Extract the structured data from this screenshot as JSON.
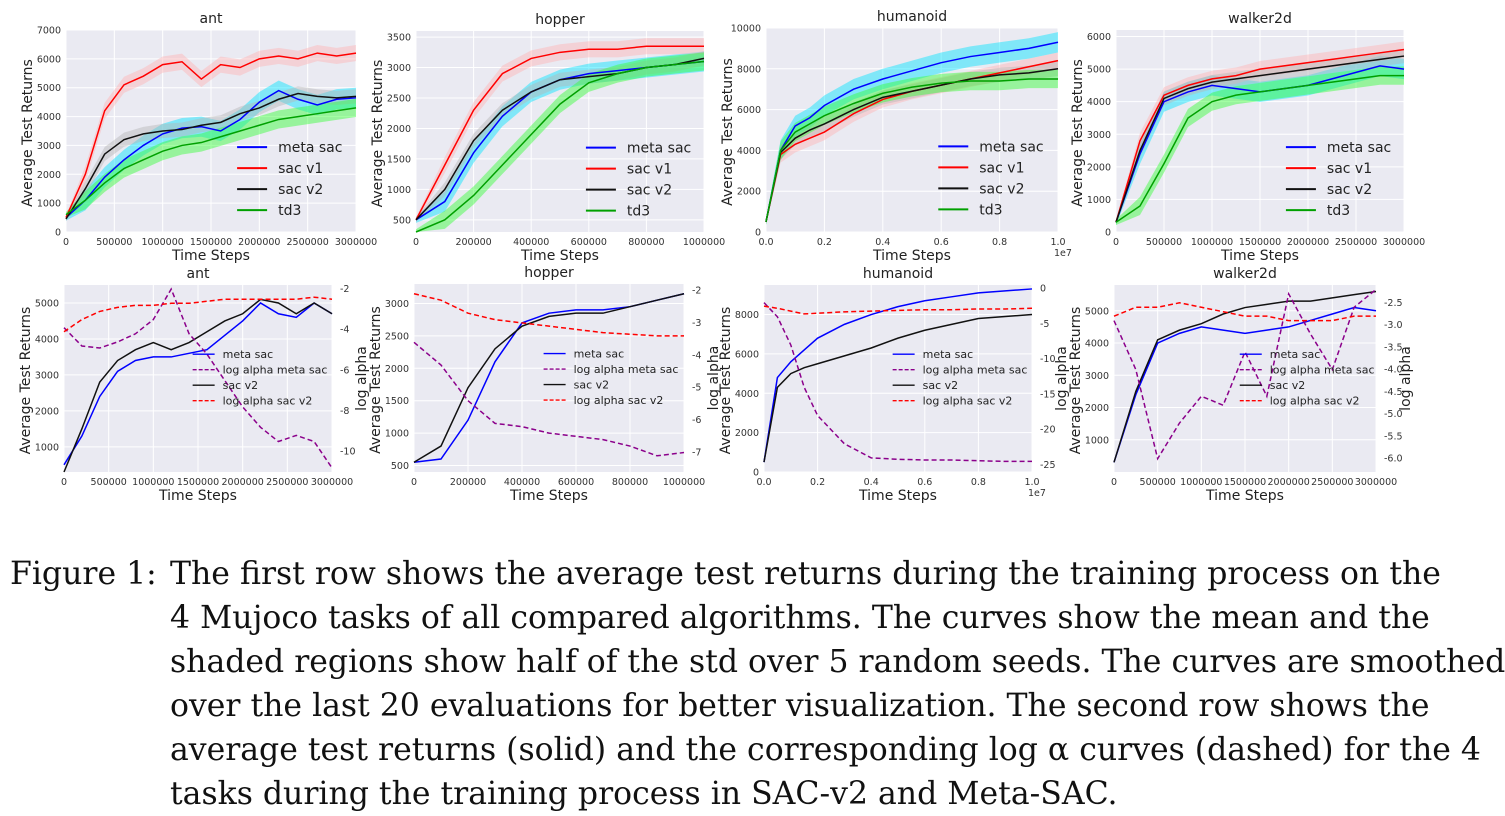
{
  "chart_data": [
    {
      "type": "line",
      "task": "ant",
      "title": "ant",
      "xlabel": "Time Steps",
      "ylabel": "Average Test Returns",
      "xlim": [
        0,
        3000000
      ],
      "ylim": [
        0,
        7000
      ],
      "xticks": [
        "0",
        "500000",
        "1000000",
        "1500000",
        "2000000",
        "2500000",
        "3000000"
      ],
      "yticks": [
        "0",
        "1000",
        "2000",
        "3000",
        "4000",
        "5000",
        "6000",
        "7000"
      ],
      "legend": [
        "meta sac",
        "sac v1",
        "sac v2",
        "td3"
      ],
      "x": [
        0,
        200000,
        400000,
        600000,
        800000,
        1000000,
        1200000,
        1400000,
        1600000,
        1800000,
        2000000,
        2200000,
        2400000,
        2600000,
        2800000,
        3000000
      ],
      "series": [
        {
          "name": "meta sac",
          "values": [
            500,
            1100,
            1900,
            2500,
            3000,
            3400,
            3600,
            3650,
            3500,
            3900,
            4500,
            4900,
            4600,
            4400,
            4600,
            4650
          ]
        },
        {
          "name": "sac v1",
          "values": [
            500,
            2000,
            4200,
            5100,
            5400,
            5800,
            5900,
            5300,
            5800,
            5700,
            6000,
            6100,
            6000,
            6200,
            6100,
            6200
          ]
        },
        {
          "name": "sac v2",
          "values": [
            450,
            1500,
            2700,
            3200,
            3400,
            3500,
            3550,
            3700,
            3800,
            4100,
            4300,
            4600,
            4800,
            4700,
            4650,
            4700
          ]
        },
        {
          "name": "td3",
          "values": [
            600,
            1100,
            1700,
            2200,
            2500,
            2800,
            3000,
            3100,
            3300,
            3500,
            3700,
            3900,
            4000,
            4100,
            4200,
            4300
          ]
        }
      ]
    },
    {
      "type": "line",
      "task": "hopper",
      "title": "hopper",
      "xlabel": "Time Steps",
      "ylabel": "Average Test Returns",
      "xlim": [
        0,
        1000000
      ],
      "ylim": [
        300,
        3600
      ],
      "xticks": [
        "0",
        "200000",
        "400000",
        "600000",
        "800000",
        "1000000"
      ],
      "yticks": [
        "500",
        "1000",
        "1500",
        "2000",
        "2500",
        "3000",
        "3500"
      ],
      "legend": [
        "meta sac",
        "sac v1",
        "sac v2",
        "td3"
      ],
      "x": [
        0,
        100000,
        200000,
        300000,
        400000,
        500000,
        600000,
        700000,
        800000,
        900000,
        1000000
      ],
      "series": [
        {
          "name": "meta sac",
          "values": [
            500,
            800,
            1600,
            2200,
            2600,
            2800,
            2900,
            2950,
            3000,
            3050,
            3100
          ]
        },
        {
          "name": "sac v1",
          "values": [
            500,
            1400,
            2300,
            2900,
            3150,
            3250,
            3300,
            3300,
            3350,
            3350,
            3350
          ]
        },
        {
          "name": "sac v2",
          "values": [
            500,
            1000,
            1800,
            2300,
            2600,
            2800,
            2850,
            2900,
            3000,
            3050,
            3150
          ]
        },
        {
          "name": "td3",
          "values": [
            300,
            500,
            900,
            1400,
            1900,
            2400,
            2750,
            2900,
            3000,
            3050,
            3100
          ]
        }
      ]
    },
    {
      "type": "line",
      "task": "humanoid",
      "title": "humanoid",
      "xlabel": "Time Steps",
      "ylabel": "Average Test Returns",
      "xlim": [
        0,
        1
      ],
      "ylim": [
        0,
        10000
      ],
      "x_scale_label": "1e7",
      "xticks": [
        "0.0",
        "0.2",
        "0.4",
        "0.6",
        "0.8",
        "1.0"
      ],
      "yticks": [
        "0",
        "2000",
        "4000",
        "6000",
        "8000",
        "10000"
      ],
      "legend": [
        "meta sac",
        "sac v1",
        "sac v2",
        "td3"
      ],
      "x": [
        0,
        0.05,
        0.1,
        0.15,
        0.2,
        0.3,
        0.4,
        0.5,
        0.6,
        0.7,
        0.8,
        0.9,
        1.0
      ],
      "series": [
        {
          "name": "meta sac",
          "values": [
            500,
            4000,
            5200,
            5600,
            6200,
            7000,
            7500,
            7900,
            8300,
            8600,
            8800,
            9000,
            9300
          ]
        },
        {
          "name": "sac v1",
          "values": [
            500,
            3800,
            4300,
            4600,
            4900,
            5800,
            6500,
            6900,
            7200,
            7500,
            7800,
            8100,
            8400
          ]
        },
        {
          "name": "sac v2",
          "values": [
            500,
            3900,
            4600,
            5000,
            5300,
            6000,
            6600,
            6900,
            7200,
            7500,
            7700,
            7800,
            8000
          ]
        },
        {
          "name": "td3",
          "values": [
            500,
            4000,
            4900,
            5300,
            5700,
            6300,
            6800,
            7100,
            7300,
            7400,
            7400,
            7500,
            7500
          ]
        }
      ]
    },
    {
      "type": "line",
      "task": "walker2d",
      "title": "walker2d",
      "xlabel": "Time Steps",
      "ylabel": "Average Test Returns",
      "xlim": [
        0,
        3000000
      ],
      "ylim": [
        0,
        6200
      ],
      "xticks": [
        "0",
        "500000",
        "1000000",
        "1500000",
        "2000000",
        "2500000",
        "3000000"
      ],
      "yticks": [
        "0",
        "1000",
        "2000",
        "3000",
        "4000",
        "5000",
        "6000"
      ],
      "legend": [
        "meta sac",
        "sac v1",
        "sac v2",
        "td3"
      ],
      "x": [
        0,
        250000,
        500000,
        750000,
        1000000,
        1250000,
        1500000,
        1750000,
        2000000,
        2250000,
        2500000,
        2750000,
        3000000
      ],
      "series": [
        {
          "name": "meta sac",
          "values": [
            300,
            2400,
            4000,
            4300,
            4500,
            4400,
            4300,
            4400,
            4500,
            4700,
            4900,
            5100,
            5000
          ]
        },
        {
          "name": "sac v1",
          "values": [
            300,
            2800,
            4200,
            4500,
            4700,
            4800,
            5000,
            5100,
            5200,
            5300,
            5400,
            5500,
            5600
          ]
        },
        {
          "name": "sac v2",
          "values": [
            300,
            2500,
            4100,
            4400,
            4600,
            4700,
            4800,
            4900,
            5000,
            5100,
            5200,
            5300,
            5400
          ]
        },
        {
          "name": "td3",
          "values": [
            300,
            800,
            2100,
            3500,
            4000,
            4200,
            4300,
            4400,
            4500,
            4600,
            4700,
            4800,
            4800
          ]
        }
      ]
    },
    {
      "type": "line",
      "task": "ant",
      "title": "ant",
      "xlabel": "Time Steps",
      "ylabel": "Average Test Returns",
      "y2label": "log alpha",
      "xlim": [
        0,
        3000000
      ],
      "ylim": [
        300,
        5500
      ],
      "y2lim": [
        -11,
        -1.8
      ],
      "xticks": [
        "0",
        "500000",
        "1000000",
        "1500000",
        "2000000",
        "2500000",
        "3000000"
      ],
      "yticks": [
        "1000",
        "2000",
        "3000",
        "4000",
        "5000"
      ],
      "y2ticks": [
        "-2",
        "-4",
        "-6",
        "-8",
        "-10"
      ],
      "legend": [
        "meta sac",
        "log alpha meta sac",
        "sac v2",
        "log alpha sac v2"
      ],
      "x": [
        0,
        200000,
        400000,
        600000,
        800000,
        1000000,
        1200000,
        1400000,
        1600000,
        1800000,
        2000000,
        2200000,
        2400000,
        2600000,
        2800000,
        3000000
      ],
      "series": [
        {
          "name": "meta sac",
          "axis": "left",
          "values": [
            500,
            1300,
            2400,
            3100,
            3400,
            3500,
            3500,
            3600,
            3700,
            4100,
            4500,
            5000,
            4700,
            4600,
            5000,
            4700
          ]
        },
        {
          "name": "sac v2",
          "axis": "left",
          "values": [
            300,
            1500,
            2800,
            3400,
            3700,
            3900,
            3700,
            3900,
            4200,
            4500,
            4700,
            5100,
            5000,
            4700,
            5000,
            4700
          ]
        },
        {
          "name": "log alpha meta sac",
          "axis": "right",
          "values": [
            -3.9,
            -4.8,
            -4.9,
            -4.6,
            -4.2,
            -3.5,
            -2,
            -4.2,
            -5.2,
            -6.5,
            -7.8,
            -8.8,
            -9.5,
            -9.2,
            -9.5,
            -10.8
          ]
        },
        {
          "name": "log alpha sac v2",
          "axis": "right",
          "values": [
            -4.1,
            -3.5,
            -3.1,
            -2.9,
            -2.8,
            -2.8,
            -2.7,
            -2.7,
            -2.6,
            -2.5,
            -2.5,
            -2.5,
            -2.5,
            -2.5,
            -2.4,
            -2.5
          ]
        }
      ]
    },
    {
      "type": "line",
      "task": "hopper",
      "title": "hopper",
      "xlabel": "Time Steps",
      "ylabel": "Average Test Returns",
      "y2label": "log alpha",
      "xlim": [
        0,
        1000000
      ],
      "ylim": [
        400,
        3300
      ],
      "y2lim": [
        -7.6,
        -1.8
      ],
      "xticks": [
        "0",
        "200000",
        "400000",
        "600000",
        "800000",
        "1000000"
      ],
      "yticks": [
        "500",
        "1000",
        "1500",
        "2000",
        "2500",
        "3000"
      ],
      "y2ticks": [
        "-2",
        "-3",
        "-4",
        "-5",
        "-6",
        "-7"
      ],
      "legend": [
        "meta sac",
        "log alpha meta sac",
        "sac v2",
        "log alpha sac v2"
      ],
      "x": [
        0,
        100000,
        200000,
        300000,
        400000,
        500000,
        600000,
        700000,
        800000,
        900000,
        1000000
      ],
      "series": [
        {
          "name": "meta sac",
          "axis": "left",
          "values": [
            550,
            600,
            1200,
            2100,
            2700,
            2850,
            2900,
            2900,
            2950,
            3050,
            3150
          ]
        },
        {
          "name": "sac v2",
          "axis": "left",
          "values": [
            550,
            800,
            1700,
            2300,
            2650,
            2800,
            2850,
            2850,
            2950,
            3050,
            3150
          ]
        },
        {
          "name": "log alpha meta sac",
          "axis": "right",
          "values": [
            -3.6,
            -4.3,
            -5.4,
            -6.1,
            -6.2,
            -6.4,
            -6.5,
            -6.6,
            -6.8,
            -7.1,
            -7
          ]
        },
        {
          "name": "log alpha sac v2",
          "axis": "right",
          "values": [
            -2.1,
            -2.3,
            -2.7,
            -2.9,
            -3,
            -3.1,
            -3.2,
            -3.3,
            -3.35,
            -3.4,
            -3.4
          ]
        }
      ]
    },
    {
      "type": "line",
      "task": "humanoid",
      "title": "humanoid",
      "xlabel": "Time Steps",
      "ylabel": "Average Test Returns",
      "y2label": "log alpha",
      "xlim": [
        0,
        1
      ],
      "ylim": [
        0,
        9500
      ],
      "y2lim": [
        -26,
        0.5
      ],
      "x_scale_label": "1e7",
      "xticks": [
        "0.0",
        "0.2",
        "0.4",
        "0.6",
        "0.8",
        "1.0"
      ],
      "yticks": [
        "0",
        "2000",
        "4000",
        "6000",
        "8000"
      ],
      "y2ticks": [
        "0",
        "-5",
        "-10",
        "-15",
        "-20",
        "-25"
      ],
      "legend": [
        "meta sac",
        "log alpha meta sac",
        "sac v2",
        "log alpha sac v2"
      ],
      "x": [
        0,
        0.05,
        0.1,
        0.15,
        0.2,
        0.3,
        0.4,
        0.5,
        0.6,
        0.7,
        0.8,
        0.9,
        1.0
      ],
      "series": [
        {
          "name": "meta sac",
          "axis": "left",
          "values": [
            500,
            4800,
            5600,
            6200,
            6800,
            7500,
            8000,
            8400,
            8700,
            8900,
            9100,
            9200,
            9300
          ]
        },
        {
          "name": "sac v2",
          "axis": "left",
          "values": [
            500,
            4300,
            5000,
            5300,
            5500,
            5900,
            6300,
            6800,
            7200,
            7500,
            7800,
            7900,
            8000
          ]
        },
        {
          "name": "log alpha meta sac",
          "axis": "right",
          "values": [
            -2,
            -4,
            -8,
            -14,
            -18,
            -22,
            -24,
            -24.2,
            -24.3,
            -24.3,
            -24.4,
            -24.5,
            -24.5
          ]
        },
        {
          "name": "log alpha sac v2",
          "axis": "right",
          "values": [
            -2.5,
            -2.8,
            -3.2,
            -3.6,
            -3.5,
            -3.3,
            -3.2,
            -3.1,
            -3,
            -3,
            -2.9,
            -2.9,
            -2.8
          ]
        }
      ]
    },
    {
      "type": "line",
      "task": "walker2d",
      "title": "walker2d",
      "xlabel": "Time Steps",
      "ylabel": "Average Test Returns",
      "y2label": "log alpha",
      "xlim": [
        0,
        3000000
      ],
      "ylim": [
        0,
        5800
      ],
      "y2lim": [
        -6.3,
        -2.1
      ],
      "xticks": [
        "0",
        "500000",
        "1000000",
        "1500000",
        "2000000",
        "2500000",
        "3000000"
      ],
      "yticks": [
        "1000",
        "2000",
        "3000",
        "4000",
        "5000"
      ],
      "y2ticks": [
        "-2.5",
        "-3.0",
        "-3.5",
        "-4.0",
        "-4.5",
        "-5.0",
        "-5.5",
        "-6.0"
      ],
      "legend": [
        "meta sac",
        "log alpha meta sac",
        "sac v2",
        "log alpha sac v2"
      ],
      "x": [
        0,
        250000,
        500000,
        750000,
        1000000,
        1250000,
        1500000,
        1750000,
        2000000,
        2250000,
        2500000,
        2750000,
        3000000
      ],
      "series": [
        {
          "name": "meta sac",
          "axis": "left",
          "values": [
            300,
            2400,
            4000,
            4300,
            4500,
            4400,
            4300,
            4400,
            4500,
            4700,
            4900,
            5100,
            5000
          ]
        },
        {
          "name": "sac v2",
          "axis": "left",
          "values": [
            300,
            2500,
            4100,
            4400,
            4600,
            4900,
            5100,
            5200,
            5300,
            5300,
            5400,
            5500,
            5600
          ]
        },
        {
          "name": "log alpha meta sac",
          "axis": "right",
          "values": [
            -2.9,
            -4,
            -6,
            -5.2,
            -4.6,
            -4.8,
            -3.6,
            -4.6,
            -2.3,
            -3.2,
            -4,
            -2.6,
            -2.2
          ]
        },
        {
          "name": "log alpha sac v2",
          "axis": "right",
          "values": [
            -2.8,
            -2.6,
            -2.6,
            -2.5,
            -2.6,
            -2.7,
            -2.8,
            -2.8,
            -2.9,
            -2.9,
            -2.9,
            -2.8,
            -2.8
          ]
        }
      ]
    }
  ],
  "colors": {
    "meta sac": "#0000ff",
    "sac v1": "#ff0000",
    "sac v2": "#111111",
    "td3": "#00a000",
    "log alpha meta sac": "#8b008b",
    "log alpha sac v2": "#ff0000",
    "band_meta": "#00e5ff",
    "band_v1": "#ffb3b3",
    "band_v2": "#b5b5b5",
    "band_td3": "#33ff33",
    "panel_bg": "#eaeaf2"
  },
  "caption": {
    "label": "Figure 1:",
    "lines": [
      "The first row shows the average test returns during the training process on the",
      "4 Mujoco tasks of all compared algorithms. The curves show the mean and the",
      "shaded regions show half of the std over 5 random seeds. The curves are smoothed",
      "over the last 20 evaluations for better visualization. The second row shows the",
      "average test returns (solid) and the corresponding log α curves (dashed) for the 4",
      "tasks during the training process in SAC-v2 and Meta-SAC."
    ]
  }
}
